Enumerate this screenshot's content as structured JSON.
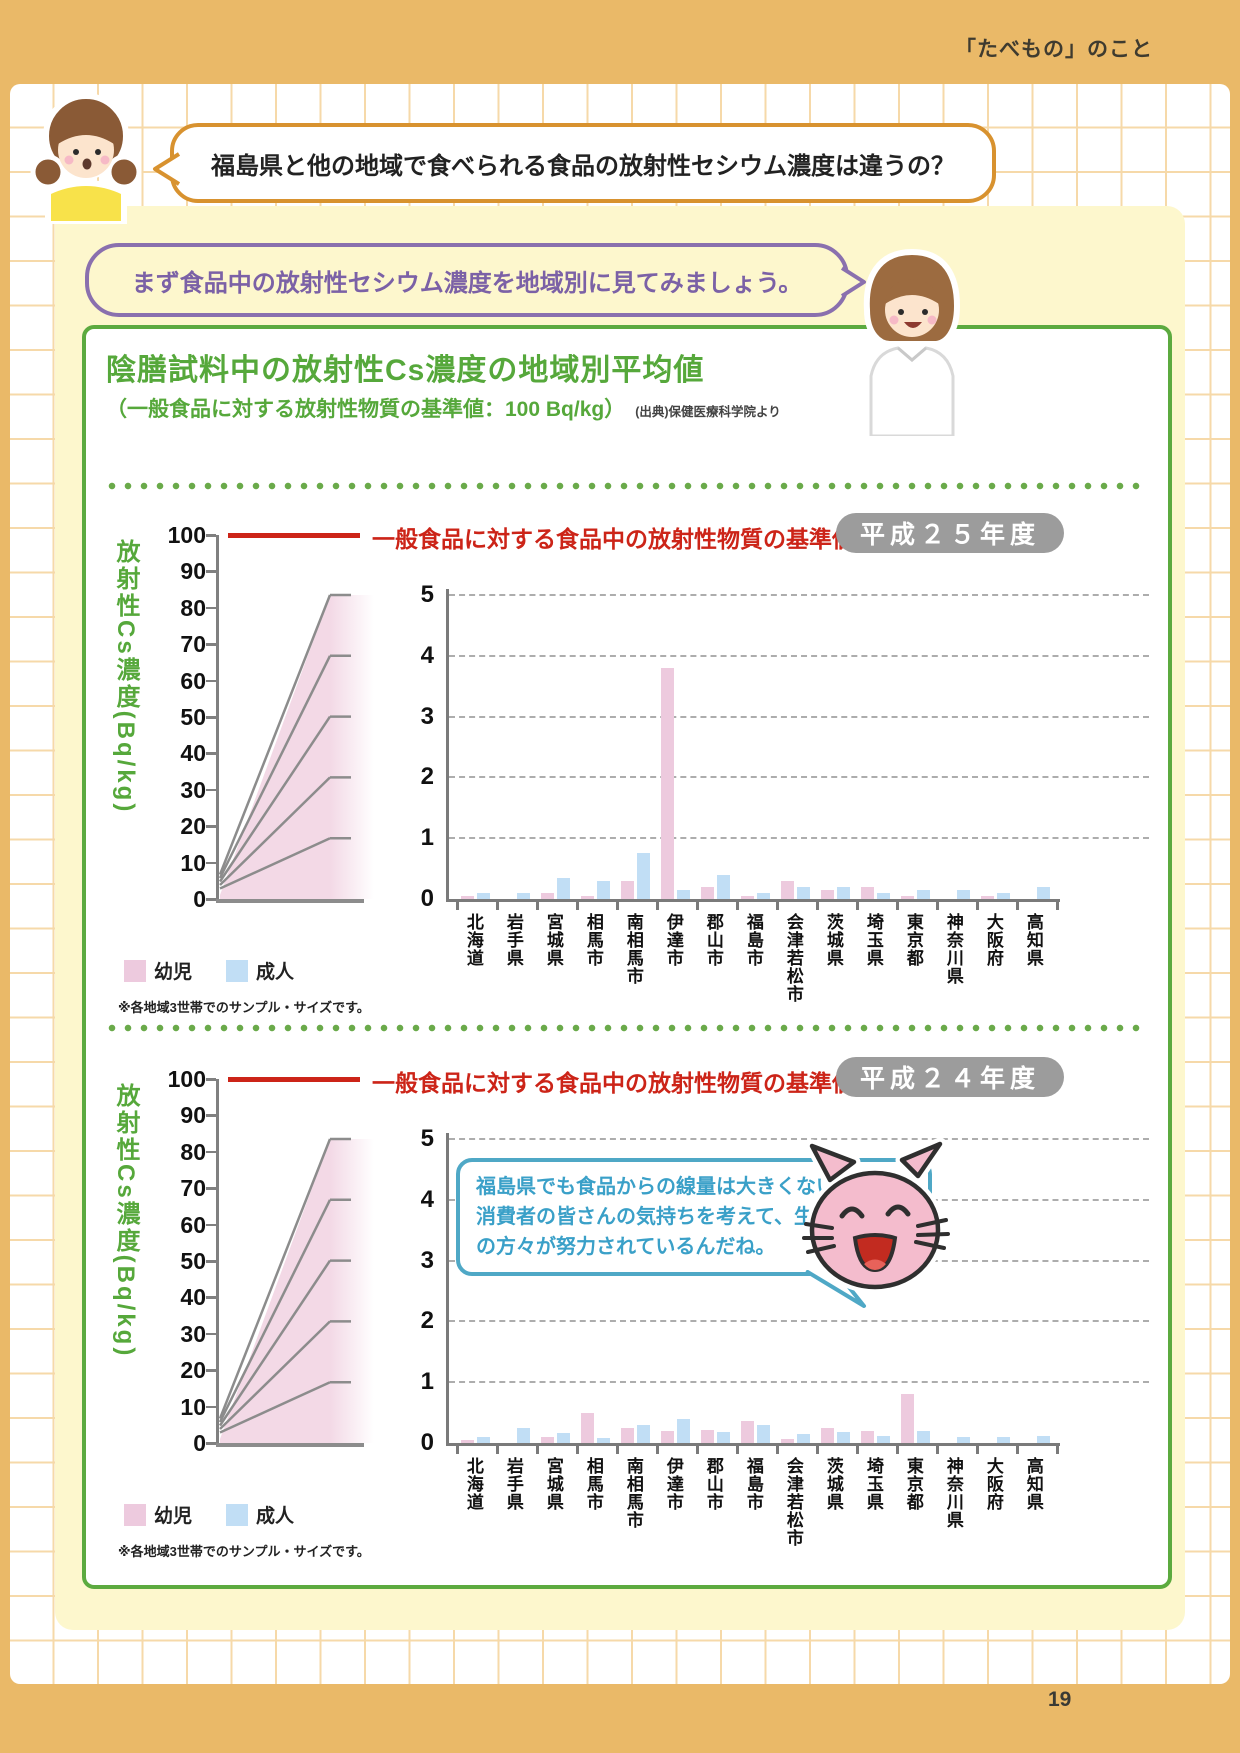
{
  "page": {
    "header": "「たべもの」のこと",
    "page_number": "19"
  },
  "question_bubble": {
    "text": "福島県と他の地域で食べられる食品の放射性セシウム濃度は違うの？"
  },
  "intro_bubble": {
    "text": "まず食品中の放射性セシウム濃度を地域別に見てみましょう。"
  },
  "panel": {
    "title": "陰膳試料中の放射性Cs濃度の地域別平均値",
    "subtitle": "（一般食品に対する放射性物質の基準値：100 Bq/kg）",
    "source": "(出典)保健医療科学院より"
  },
  "cat_bubble": {
    "lines": [
      "福島県でも食品からの線量は大きくないよ！",
      "消費者の皆さんの気持ちを考えて、生産者",
      "の方々が努力されているんだね。"
    ]
  },
  "colors": {
    "infant_bar": "#edcade",
    "adult_bar": "#c1def5",
    "threshold_red": "#cc2418",
    "green": "#56a83b",
    "badge_gray": "#9c9c9c",
    "fan_pink": "#f3d9e6"
  },
  "chart_data": [
    {
      "type": "bar",
      "badge": "平成２５年度",
      "threshold_label": "一般食品に対する食品中の放射性物質の基準値",
      "threshold_value": 100,
      "ylabel": "放射性Cs濃度(Bq/kg)",
      "outer_ylim": [
        0,
        100
      ],
      "outer_tick_step": 10,
      "inset_ylim": [
        0,
        5
      ],
      "note": "※各地域3世帯でのサンプル・サイズです。",
      "categories": [
        "北海道",
        "岩手県",
        "宮城県",
        "相馬市",
        "南相馬市",
        "伊達市",
        "郡山市",
        "福島市",
        "会津若松市",
        "茨城県",
        "埼玉県",
        "東京都",
        "神奈川県",
        "大阪府",
        "高知県"
      ],
      "series": [
        {
          "name": "幼児",
          "color": "#edcade",
          "values": [
            0.05,
            0,
            0.1,
            0.05,
            0.3,
            3.8,
            0.2,
            0.05,
            0.3,
            0.15,
            0.2,
            0.05,
            0,
            0.05,
            0
          ]
        },
        {
          "name": "成人",
          "color": "#c1def5",
          "values": [
            0.1,
            0.1,
            0.35,
            0.3,
            0.75,
            0.15,
            0.4,
            0.1,
            0.2,
            0.2,
            0.1,
            0.15,
            0.15,
            0.1,
            0.2
          ]
        }
      ]
    },
    {
      "type": "bar",
      "badge": "平成２４年度",
      "threshold_label": "一般食品に対する食品中の放射性物質の基準値",
      "threshold_value": 100,
      "ylabel": "放射性Cs濃度(Bq/kg)",
      "outer_ylim": [
        0,
        100
      ],
      "outer_tick_step": 10,
      "inset_ylim": [
        0,
        5
      ],
      "note": "※各地域3世帯でのサンプル・サイズです。",
      "categories": [
        "北海道",
        "岩手県",
        "宮城県",
        "相馬市",
        "南相馬市",
        "伊達市",
        "郡山市",
        "福島市",
        "会津若松市",
        "茨城県",
        "埼玉県",
        "東京都",
        "神奈川県",
        "大阪府",
        "高知県"
      ],
      "series": [
        {
          "name": "幼児",
          "color": "#edcade",
          "values": [
            0.05,
            0,
            0.1,
            0.5,
            0.25,
            0.2,
            0.22,
            0.37,
            0.07,
            0.25,
            0.2,
            0.8,
            0,
            0,
            0
          ]
        },
        {
          "name": "成人",
          "color": "#c1def5",
          "values": [
            0.1,
            0.25,
            0.17,
            0.08,
            0.3,
            0.4,
            0.18,
            0.29,
            0.15,
            0.18,
            0.12,
            0.2,
            0.1,
            0.1,
            0.12
          ]
        }
      ]
    }
  ]
}
